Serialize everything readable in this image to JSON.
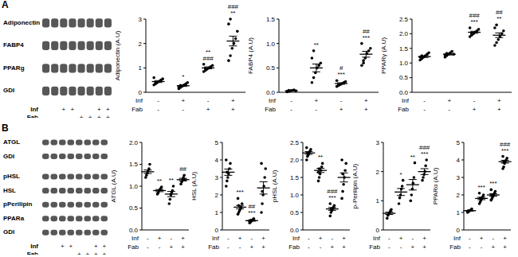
{
  "blots": [
    {
      "panel": "A",
      "bands": [
        [
          "Adiponectin",
          "FABP4",
          "PPARg",
          "GDI"
        ]
      ],
      "lanes": [
        {
          "label": "Inf",
          "values": [
            null,
            null,
            "+",
            "+",
            null,
            null,
            "+",
            "+"
          ]
        },
        {
          "label": "Fab",
          "values": [
            null,
            null,
            null,
            null,
            "+",
            "+",
            "+",
            "+"
          ]
        }
      ]
    },
    {
      "panel": "B",
      "bands": [
        [
          "ATGL",
          "GDI"
        ],
        [
          "pHSL",
          "HSL",
          "pPerilipin",
          "PPARa",
          "GDI"
        ]
      ],
      "lanes": [
        {
          "label": "Inf",
          "values": [
            null,
            null,
            "+",
            "+",
            null,
            null,
            "+",
            "+"
          ]
        },
        {
          "label": "Fab",
          "values": [
            null,
            null,
            null,
            null,
            "+",
            "+",
            "+",
            "+"
          ]
        }
      ]
    }
  ],
  "chart_data": [
    {
      "panel": "A",
      "type": "scatter",
      "color": "#000000",
      "tick_labels": "y",
      "ylabel": "Adiponectin (A.U)",
      "ylim": [
        0,
        3
      ],
      "yticks": [
        0,
        1,
        2,
        3
      ],
      "conditions": [
        {
          "label": "Inf",
          "values": [
            "-",
            "+",
            "-",
            "+"
          ]
        },
        {
          "label": "Fab",
          "values": [
            "-",
            "-",
            "+",
            "+"
          ]
        }
      ],
      "groups": [
        {
          "values": [
            0.3,
            0.35,
            0.4,
            0.45,
            0.5,
            0.55,
            0.6,
            0.38
          ],
          "mean": 0.44,
          "error": 0.04,
          "annotation": []
        },
        {
          "values": [
            0.15,
            0.2,
            0.25,
            0.3,
            0.35,
            0.4,
            0.22,
            0.28
          ],
          "mean": 0.27,
          "error": 0.03,
          "annotation": [
            "*"
          ]
        },
        {
          "values": [
            0.85,
            0.9,
            0.95,
            1.0,
            1.05,
            1.1,
            1.15,
            0.98
          ],
          "mean": 1.0,
          "error": 0.04,
          "annotation": [
            "**",
            "###"
          ]
        },
        {
          "values": [
            1.3,
            1.5,
            1.8,
            2.0,
            2.2,
            2.5,
            2.8,
            3.0
          ],
          "mean": 2.1,
          "error": 0.2,
          "annotation": [
            "###",
            "**"
          ]
        }
      ]
    },
    {
      "panel": "A",
      "type": "scatter",
      "color": "#000000",
      "tick_labels": "y",
      "ylabel": "FABP4 (A.U)",
      "ylim": [
        0,
        1.5
      ],
      "yticks": [
        {
          "value": 0,
          "label": "0.0"
        },
        0.5,
        {
          "value": 1,
          "label": "1.0"
        },
        1.5
      ],
      "conditions": [
        {
          "label": "Inf",
          "values": [
            "-",
            "+",
            "-",
            "+"
          ]
        },
        {
          "label": "Fab",
          "values": [
            "-",
            "-",
            "+",
            "+"
          ]
        }
      ],
      "groups": [
        {
          "values": [
            0.01,
            0.02,
            0.03,
            0.04,
            0.05,
            0.03,
            0.02,
            0.04
          ],
          "mean": 0.03,
          "error": 0.005,
          "annotation": []
        },
        {
          "values": [
            0.2,
            0.3,
            0.4,
            0.5,
            0.55,
            0.6,
            0.7,
            0.85
          ],
          "mean": 0.5,
          "error": 0.08,
          "annotation": [
            "**"
          ]
        },
        {
          "values": [
            0.12,
            0.14,
            0.16,
            0.18,
            0.2,
            0.22,
            0.24,
            0.15
          ],
          "mean": 0.18,
          "error": 0.015,
          "annotation": [
            "#",
            "***"
          ]
        },
        {
          "values": [
            0.55,
            0.65,
            0.7,
            0.8,
            0.85,
            0.9,
            1.0,
            0.6
          ],
          "mean": 0.78,
          "error": 0.06,
          "annotation": [
            "##",
            "***"
          ]
        }
      ]
    },
    {
      "panel": "A",
      "type": "scatter",
      "color": "#000000",
      "tick_labels": "y",
      "ylabel": "PPARγ (A.U)",
      "ylim": [
        0,
        2.5
      ],
      "yticks": [
        {
          "value": 0,
          "label": "0.0"
        },
        0.5,
        {
          "value": 1,
          "label": "1.0"
        },
        1.5,
        {
          "value": 2,
          "label": "2.0"
        },
        2.5
      ],
      "conditions": [
        {
          "label": "Inf",
          "values": [
            "-",
            "+",
            "-",
            "+"
          ]
        },
        {
          "label": "Fab",
          "values": [
            "-",
            "-",
            "+",
            "+"
          ]
        }
      ],
      "groups": [
        {
          "values": [
            1.1,
            1.15,
            1.2,
            1.25,
            1.3,
            1.35,
            1.2,
            1.25
          ],
          "mean": 1.22,
          "error": 0.03,
          "annotation": []
        },
        {
          "values": [
            1.2,
            1.25,
            1.3,
            1.35,
            1.4,
            1.3,
            1.28,
            1.33
          ],
          "mean": 1.3,
          "error": 0.025,
          "annotation": []
        },
        {
          "values": [
            1.9,
            1.95,
            2.0,
            2.05,
            2.1,
            2.15,
            2.2,
            2.0
          ],
          "mean": 2.05,
          "error": 0.035,
          "annotation": [
            "###",
            "***"
          ]
        },
        {
          "values": [
            1.6,
            1.7,
            1.8,
            1.9,
            2.0,
            2.1,
            2.2,
            2.3
          ],
          "mean": 1.95,
          "error": 0.08,
          "annotation": [
            "##",
            "**"
          ]
        }
      ]
    },
    {
      "panel": "B",
      "type": "scatter",
      "color": "#000000",
      "tick_labels": "y",
      "ylabel": "ATGL (A.U)",
      "ylim": [
        0,
        2
      ],
      "yticks": [
        {
          "value": 0,
          "label": "0.0"
        },
        0.5,
        {
          "value": 1,
          "label": "1.0"
        },
        1.5,
        {
          "value": 2,
          "label": "2.0"
        }
      ],
      "conditions": [
        {
          "label": "Inf",
          "values": [
            "-",
            "+",
            "-",
            "+"
          ]
        },
        {
          "label": "Fab",
          "values": [
            "-",
            "-",
            "+",
            "+"
          ]
        }
      ],
      "groups": [
        {
          "values": [
            1.2,
            1.25,
            1.3,
            1.35,
            1.4,
            1.5
          ],
          "mean": 1.33,
          "error": 0.04,
          "annotation": []
        },
        {
          "values": [
            0.82,
            0.85,
            0.9,
            0.92,
            0.95,
            0.98
          ],
          "mean": 0.9,
          "error": 0.025,
          "annotation": [
            "**"
          ]
        },
        {
          "values": [
            0.6,
            0.7,
            0.8,
            0.85,
            0.9,
            1.0
          ],
          "mean": 0.82,
          "error": 0.06,
          "annotation": [
            "**"
          ]
        },
        {
          "values": [
            1.05,
            1.1,
            1.15,
            1.2,
            1.25,
            1.15
          ],
          "mean": 1.15,
          "error": 0.03,
          "annotation": [
            "##"
          ]
        }
      ]
    },
    {
      "panel": "B",
      "type": "scatter",
      "color": "#000000",
      "tick_labels": "y",
      "ylabel": "HSL (A.U)",
      "ylim": [
        0,
        5
      ],
      "yticks": [
        0,
        1,
        2,
        3,
        4,
        5
      ],
      "conditions": [
        {
          "label": "Inf",
          "values": [
            "-",
            "+",
            "-",
            "+"
          ]
        },
        {
          "label": "Fab",
          "values": [
            "-",
            "-",
            "+",
            "+"
          ]
        }
      ],
      "groups": [
        {
          "values": [
            2.5,
            2.8,
            3.0,
            3.2,
            3.5,
            3.8,
            4.0,
            3.3
          ],
          "mean": 3.3,
          "error": 0.18,
          "annotation": []
        },
        {
          "values": [
            0.9,
            1.0,
            1.1,
            1.2,
            1.3,
            1.5,
            1.8,
            1.4
          ],
          "mean": 1.3,
          "error": 0.1,
          "annotation": [
            "***"
          ]
        },
        {
          "values": [
            0.4,
            0.45,
            0.5,
            0.55,
            0.6,
            0.65,
            0.5,
            0.55
          ],
          "mean": 0.53,
          "error": 0.03,
          "annotation": [
            "##",
            "***"
          ]
        },
        {
          "values": [
            1.0,
            1.5,
            2.0,
            2.5,
            3.0,
            3.5,
            3.8,
            2.2
          ],
          "mean": 2.4,
          "error": 0.35,
          "annotation": []
        }
      ]
    },
    {
      "panel": "B",
      "type": "scatter",
      "color": "#000000",
      "tick_labels": "y",
      "ylabel": "pHSL (A.U)",
      "ylim": [
        0,
        2.5
      ],
      "yticks": [
        {
          "value": 0,
          "label": "0.0"
        },
        0.5,
        {
          "value": 1,
          "label": "1.0"
        },
        1.5,
        {
          "value": 2,
          "label": "2.0"
        },
        2.5
      ],
      "conditions": [
        {
          "label": "Inf",
          "values": [
            "-",
            "+",
            "-",
            "+"
          ]
        },
        {
          "label": "Fab",
          "values": [
            "-",
            "-",
            "+",
            "+"
          ]
        }
      ],
      "groups": [
        {
          "values": [
            2.0,
            2.1,
            2.15,
            2.2,
            2.25,
            2.3,
            2.35,
            2.2
          ],
          "mean": 2.2,
          "error": 0.04,
          "annotation": []
        },
        {
          "values": [
            1.4,
            1.5,
            1.6,
            1.7,
            1.8,
            1.9,
            1.65,
            1.75
          ],
          "mean": 1.7,
          "error": 0.06,
          "annotation": [
            "**"
          ]
        },
        {
          "values": [
            0.4,
            0.5,
            0.55,
            0.6,
            0.65,
            0.7,
            0.75,
            0.6
          ],
          "mean": 0.6,
          "error": 0.04,
          "annotation": [
            "###",
            "***"
          ]
        },
        {
          "values": [
            0.9,
            1.1,
            1.3,
            1.5,
            1.7,
            1.9,
            2.0,
            1.6
          ],
          "mean": 1.5,
          "error": 0.13,
          "annotation": []
        }
      ]
    },
    {
      "panel": "B",
      "type": "scatter",
      "color": "#000000",
      "tick_labels": "y",
      "ylabel": "p-Perilipin (A.U)",
      "ylim": [
        0,
        3
      ],
      "yticks": [
        0,
        1,
        2,
        3
      ],
      "conditions": [
        {
          "label": "Inf",
          "values": [
            "-",
            "+",
            "-",
            "+"
          ]
        },
        {
          "label": "Fab",
          "values": [
            "-",
            "-",
            "+",
            "+"
          ]
        }
      ],
      "groups": [
        {
          "values": [
            0.4,
            0.5,
            0.55,
            0.6,
            0.65,
            0.7
          ],
          "mean": 0.57,
          "error": 0.04,
          "annotation": []
        },
        {
          "values": [
            0.9,
            1.1,
            1.2,
            1.4,
            1.5,
            1.7
          ],
          "mean": 1.3,
          "error": 0.12,
          "annotation": [
            "*"
          ]
        },
        {
          "values": [
            1.0,
            1.2,
            1.4,
            1.6,
            1.8,
            2.3
          ],
          "mean": 1.55,
          "error": 0.18,
          "annotation": [
            "**"
          ]
        },
        {
          "values": [
            1.7,
            1.8,
            1.9,
            2.0,
            2.2,
            2.4
          ],
          "mean": 2.0,
          "error": 0.1,
          "annotation": [
            "###",
            "***"
          ]
        }
      ]
    },
    {
      "panel": "B",
      "type": "scatter",
      "color": "#000000",
      "tick_labels": "y",
      "ylabel": "PPARα (A.U)",
      "ylim": [
        0,
        5
      ],
      "yticks": [
        0,
        1,
        2,
        3,
        4,
        5
      ],
      "conditions": [
        {
          "label": "Inf",
          "values": [
            "-",
            "+",
            "-",
            "+"
          ]
        },
        {
          "label": "Fab",
          "values": [
            "-",
            "-",
            "+",
            "+"
          ]
        }
      ],
      "groups": [
        {
          "values": [
            1.0,
            1.05,
            1.1,
            1.1,
            1.15,
            1.2,
            1.05,
            1.1
          ],
          "mean": 1.1,
          "error": 0.02,
          "annotation": []
        },
        {
          "values": [
            1.5,
            1.6,
            1.7,
            1.8,
            1.9,
            2.0,
            2.1,
            1.8
          ],
          "mean": 1.8,
          "error": 0.07,
          "annotation": [
            "***"
          ]
        },
        {
          "values": [
            1.7,
            1.8,
            1.9,
            2.0,
            2.1,
            2.2,
            2.3,
            2.0
          ],
          "mean": 2.0,
          "error": 0.07,
          "annotation": [
            "***"
          ]
        },
        {
          "values": [
            3.5,
            3.6,
            3.8,
            3.9,
            4.0,
            4.1,
            4.2,
            3.9
          ],
          "mean": 3.9,
          "error": 0.08,
          "annotation": [
            "###",
            "***"
          ]
        }
      ]
    }
  ]
}
